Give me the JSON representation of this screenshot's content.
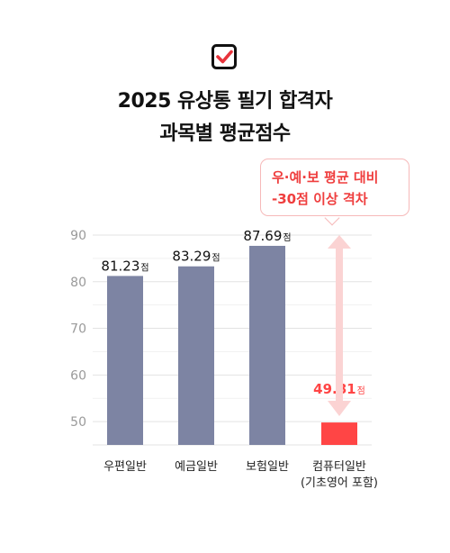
{
  "header": {
    "title_line1": "2025 유상통 필기 합격자",
    "title_line2": "과목별 평균점수"
  },
  "callout": {
    "line1": "우·예·보 평균 대비",
    "line2": "-30점 이상 격차"
  },
  "colors": {
    "bar": "#7d84a3",
    "highlight": "#ff4545",
    "callout_text": "#ef3e3e",
    "arrow": "#fbd3d3",
    "check": "#e8343c"
  },
  "chart_data": {
    "type": "bar",
    "categories": [
      "우편일반",
      "예금일반",
      "보험일반",
      "컴퓨터일반"
    ],
    "category_sublabels": [
      "",
      "",
      "",
      "(기초영어 포함)"
    ],
    "values": [
      81.23,
      83.29,
      87.69,
      49.81
    ],
    "value_labels": [
      {
        "number": "81.23",
        "unit": "점"
      },
      {
        "number": "83.29",
        "unit": "점"
      },
      {
        "number": "87.69",
        "unit": "점"
      },
      {
        "number": "49.81",
        "unit": "점"
      }
    ],
    "highlight_index": 3,
    "yticks": [
      50,
      60,
      70,
      80,
      90
    ],
    "ylim": [
      45,
      90
    ],
    "grid": true
  }
}
